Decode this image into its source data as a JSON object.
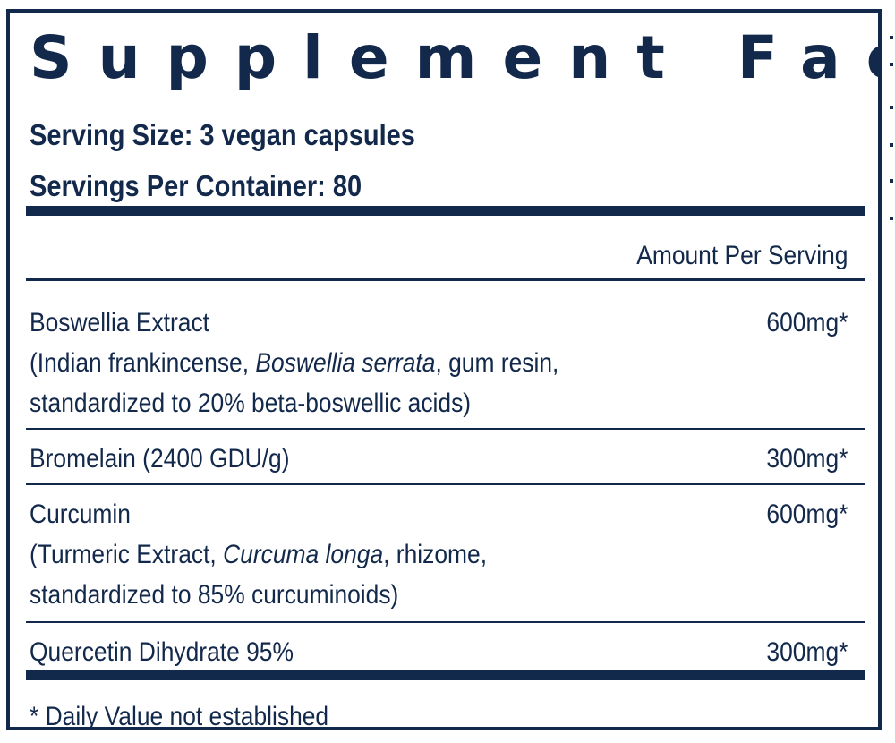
{
  "title": "Supplement Facts",
  "serving_size": "Serving Size: 3 vegan capsules",
  "servings_per_container": "Servings Per Container: 80",
  "amount_header": "Amount Per Serving",
  "ingredients": [
    {
      "name": "Boswellia Extract",
      "detail_prefix": "(Indian frankincense, ",
      "detail_italic": "Boswellia serrata",
      "detail_suffix": ", gum resin,",
      "detail_line2": "standardized to 20% beta-boswellic acids)",
      "amount": "600mg*"
    },
    {
      "name": "Bromelain (2400 GDU/g)",
      "amount": "300mg*"
    },
    {
      "name": "Curcumin",
      "detail_prefix": "(Turmeric Extract, ",
      "detail_italic": "Curcuma longa",
      "detail_suffix": ", rhizome,",
      "detail_line2": "standardized to 85% curcuminoids)",
      "amount": "600mg*"
    },
    {
      "name": "Quercetin Dihydrate 95%",
      "amount": "300mg*"
    }
  ],
  "footnote": "* Daily Value not established",
  "colors": {
    "ink": "#13294b",
    "background": "#ffffff"
  }
}
